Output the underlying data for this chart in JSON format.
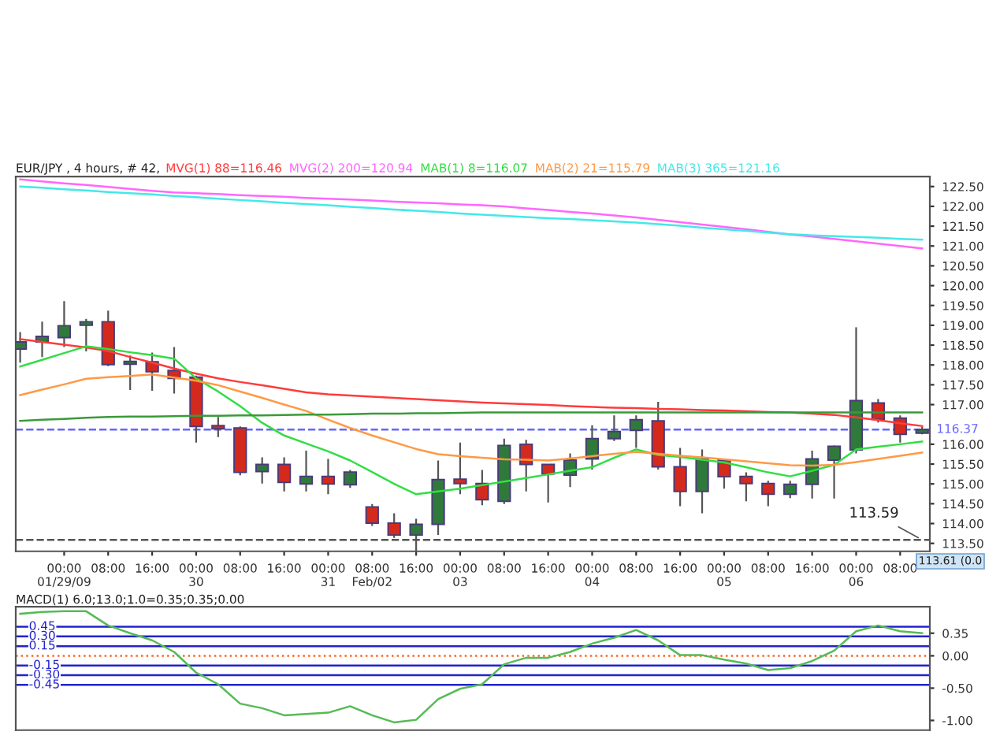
{
  "chart_data": [
    {
      "type": "candlestick",
      "title": "EUR/JPY , 4 hours, # 42,",
      "legend": "top",
      "categories": [
        null,
        null,
        "00:00\n01/29/09",
        null,
        "08:00",
        null,
        "16:00",
        null,
        "00:00\n30",
        null,
        "08:00",
        null,
        "16:00",
        null,
        "00:00\n31",
        null,
        "08:00\nFeb/02",
        null,
        "16:00",
        null,
        "00:00\n03",
        null,
        "08:00",
        null,
        "16:00",
        null,
        "00:00\n04",
        null,
        "08:00",
        null,
        "16:00",
        null,
        "00:00\n05",
        null,
        "08:00",
        null,
        "16:00",
        null,
        "00:00\n06",
        null,
        "08:00",
        null
      ],
      "ohlc": [
        [
          118.4,
          118.83,
          118.06,
          118.58
        ],
        [
          118.58,
          119.09,
          118.2,
          118.72
        ],
        [
          118.69,
          119.61,
          118.45,
          118.99
        ],
        [
          119.0,
          119.16,
          118.34,
          119.09
        ],
        [
          119.09,
          119.37,
          117.97,
          118.01
        ],
        [
          118.02,
          118.24,
          117.37,
          118.09
        ],
        [
          118.08,
          118.31,
          117.35,
          117.83
        ],
        [
          117.86,
          118.45,
          117.28,
          117.66
        ],
        [
          117.69,
          117.73,
          116.04,
          116.45
        ],
        [
          116.47,
          116.69,
          116.18,
          116.39
        ],
        [
          116.41,
          116.45,
          115.22,
          115.29
        ],
        [
          115.31,
          115.67,
          115.01,
          115.49
        ],
        [
          115.49,
          115.67,
          114.81,
          115.04
        ],
        [
          115.0,
          115.84,
          114.81,
          115.19
        ],
        [
          115.19,
          115.63,
          114.74,
          115.0
        ],
        [
          114.98,
          115.35,
          114.9,
          115.3
        ],
        [
          114.42,
          114.49,
          113.94,
          114.01
        ],
        [
          114.01,
          114.26,
          113.64,
          113.71
        ],
        [
          113.71,
          114.12,
          113.23,
          113.98
        ],
        [
          113.98,
          115.59,
          113.71,
          115.11
        ],
        [
          115.12,
          116.04,
          114.74,
          115.01
        ],
        [
          115.01,
          115.35,
          114.46,
          114.6
        ],
        [
          114.56,
          116.14,
          114.49,
          115.97
        ],
        [
          116.0,
          116.11,
          114.81,
          115.49
        ],
        [
          115.49,
          115.49,
          114.53,
          115.25
        ],
        [
          115.22,
          115.77,
          114.92,
          115.6
        ],
        [
          115.63,
          116.48,
          115.36,
          116.14
        ],
        [
          116.14,
          116.73,
          116.08,
          116.32
        ],
        [
          116.35,
          116.73,
          115.91,
          116.62
        ],
        [
          116.59,
          117.07,
          115.36,
          115.43
        ],
        [
          115.43,
          115.91,
          114.44,
          114.81
        ],
        [
          114.81,
          115.87,
          114.26,
          115.63
        ],
        [
          115.6,
          115.63,
          114.88,
          115.18
        ],
        [
          115.19,
          115.29,
          114.56,
          115.01
        ],
        [
          115.01,
          115.08,
          114.44,
          114.74
        ],
        [
          114.74,
          115.08,
          114.64,
          114.99
        ],
        [
          114.99,
          115.84,
          114.63,
          115.63
        ],
        [
          115.6,
          115.97,
          114.63,
          115.95
        ],
        [
          115.86,
          118.95,
          115.77,
          117.1
        ],
        [
          117.04,
          117.14,
          116.55,
          116.63
        ],
        [
          116.66,
          116.73,
          116.04,
          116.25
        ],
        [
          116.28,
          116.45,
          116.25,
          116.37
        ]
      ],
      "colors": [
        "#2f7a3a",
        "#2f7a3a",
        "#2f7a3a",
        "#2f7a3a",
        "#d42a1e",
        "#2f7a3a",
        "#d42a1e",
        "#d42a1e",
        "#d42a1e",
        "#d42a1e",
        "#d42a1e",
        "#2f7a3a",
        "#d42a1e",
        "#2f7a3a",
        "#d42a1e",
        "#2f7a3a",
        "#d42a1e",
        "#d42a1e",
        "#2f7a3a",
        "#2f7a3a",
        "#d42a1e",
        "#d42a1e",
        "#2f7a3a",
        "#d42a1e",
        "#d42a1e",
        "#2f7a3a",
        "#2f7a3a",
        "#2f7a3a",
        "#2f7a3a",
        "#d42a1e",
        "#d42a1e",
        "#2f7a3a",
        "#d42a1e",
        "#d42a1e",
        "#d42a1e",
        "#2f7a3a",
        "#2f7a3a",
        "#2f7a3a",
        "#2f7a3a",
        "#d42a1e",
        "#d42a1e",
        "#2f7a3a"
      ],
      "series": [
        {
          "type": "line",
          "name": "MVG(1) 88=116.46",
          "color": "#ff3b3b",
          "values": [
            118.65,
            118.58,
            118.51,
            118.44,
            118.35,
            118.2,
            118.06,
            117.91,
            117.78,
            117.66,
            117.57,
            117.49,
            117.4,
            117.31,
            117.26,
            117.23,
            117.2,
            117.17,
            117.14,
            117.11,
            117.08,
            117.05,
            117.03,
            117.01,
            116.99,
            116.96,
            116.94,
            116.92,
            116.91,
            116.89,
            116.88,
            116.86,
            116.85,
            116.83,
            116.81,
            116.8,
            116.77,
            116.74,
            116.68,
            116.61,
            116.53,
            116.46
          ]
        },
        {
          "type": "line",
          "name": "MVG(2) 200=120.94",
          "color": "#ff66ff",
          "values": [
            122.68,
            122.63,
            122.58,
            122.54,
            122.49,
            122.44,
            122.39,
            122.35,
            122.33,
            122.31,
            122.28,
            122.26,
            122.24,
            122.21,
            122.19,
            122.17,
            122.15,
            122.12,
            122.1,
            122.08,
            122.05,
            122.03,
            122.0,
            121.95,
            121.91,
            121.86,
            121.82,
            121.77,
            121.72,
            121.66,
            121.6,
            121.54,
            121.48,
            121.42,
            121.36,
            121.29,
            121.24,
            121.18,
            121.12,
            121.06,
            121.0,
            120.94
          ]
        },
        {
          "type": "line",
          "name": "MAB(1) 8=116.07",
          "color": "#33dd44",
          "values": [
            117.96,
            118.13,
            118.3,
            118.47,
            118.4,
            118.32,
            118.25,
            118.16,
            117.66,
            117.33,
            116.96,
            116.54,
            116.22,
            116.02,
            115.82,
            115.59,
            115.3,
            115.0,
            114.74,
            114.81,
            114.88,
            114.97,
            115.06,
            115.15,
            115.24,
            115.33,
            115.42,
            115.66,
            115.87,
            115.73,
            115.68,
            115.61,
            115.54,
            115.42,
            115.29,
            115.19,
            115.33,
            115.48,
            115.87,
            115.94,
            116.0,
            116.07
          ]
        },
        {
          "type": "line",
          "name": "MAB(2) 21=115.79",
          "color": "#ff9944",
          "values": [
            117.24,
            117.38,
            117.51,
            117.65,
            117.69,
            117.72,
            117.76,
            117.68,
            117.6,
            117.49,
            117.33,
            117.17,
            117.0,
            116.84,
            116.62,
            116.41,
            116.22,
            116.05,
            115.88,
            115.75,
            115.7,
            115.66,
            115.62,
            115.61,
            115.59,
            115.64,
            115.7,
            115.76,
            115.81,
            115.76,
            115.71,
            115.67,
            115.62,
            115.57,
            115.52,
            115.47,
            115.46,
            115.48,
            115.55,
            115.63,
            115.71,
            115.79
          ]
        },
        {
          "type": "line",
          "name": "MAB(3) 365=121.16",
          "color": "#44e8e8",
          "values": [
            122.5,
            122.47,
            122.43,
            122.4,
            122.36,
            122.33,
            122.3,
            122.26,
            122.23,
            122.19,
            122.16,
            122.13,
            122.09,
            122.06,
            122.03,
            121.99,
            121.96,
            121.92,
            121.89,
            121.86,
            121.82,
            121.79,
            121.76,
            121.73,
            121.7,
            121.68,
            121.65,
            121.62,
            121.59,
            121.55,
            121.51,
            121.46,
            121.42,
            121.38,
            121.34,
            121.3,
            121.27,
            121.25,
            121.23,
            121.21,
            121.18,
            121.16
          ]
        },
        {
          "type": "line",
          "color": "#3a9a3a",
          "values": [
            116.59,
            116.62,
            116.64,
            116.67,
            116.69,
            116.7,
            116.7,
            116.71,
            116.72,
            116.72,
            116.73,
            116.73,
            116.74,
            116.75,
            116.75,
            116.76,
            116.77,
            116.77,
            116.78,
            116.78,
            116.79,
            116.8,
            116.8,
            116.8,
            116.8,
            116.8,
            116.8,
            116.8,
            116.8,
            116.8,
            116.8,
            116.8,
            116.8,
            116.8,
            116.8,
            116.8,
            116.8,
            116.8,
            116.8,
            116.8,
            116.8,
            116.8
          ]
        }
      ],
      "ref_lines": [
        {
          "axis": "y",
          "value": 116.37,
          "label": "116.37",
          "color": "#6666ff",
          "line_style": "dashed"
        },
        {
          "axis": "y",
          "value": 113.59,
          "label": "113.59",
          "color": "#555555",
          "line_style": "dashed"
        }
      ],
      "annotations": [
        "113.61 (0.0"
      ],
      "ylim": [
        113.3,
        122.75
      ],
      "yticks": [
        {
          "value": 113.5,
          "label": "113.50"
        },
        {
          "value": 114,
          "label": "114.00"
        },
        {
          "value": 114.5,
          "label": "114.50"
        },
        {
          "value": 115,
          "label": "115.00"
        },
        {
          "value": 115.5,
          "label": "115.50"
        },
        {
          "value": 116,
          "label": "116.00"
        },
        {
          "value": 117,
          "label": "117.00"
        },
        {
          "value": 117.5,
          "label": "117.50"
        },
        {
          "value": 118,
          "label": "118.00"
        },
        {
          "value": 118.5,
          "label": "118.50"
        },
        {
          "value": 119,
          "label": "119.00"
        },
        {
          "value": 119.5,
          "label": "119.50"
        },
        {
          "value": 120,
          "label": "120.00"
        },
        {
          "value": 120.5,
          "label": "120.50"
        },
        {
          "value": 121,
          "label": "121.00"
        },
        {
          "value": 121.5,
          "label": "121.50"
        },
        {
          "value": 122,
          "label": "122.00"
        },
        {
          "value": 122.5,
          "label": "122.50"
        }
      ]
    },
    {
      "type": "line",
      "title": "MACD(1) 6.0;13.0;1.0=0.35;0.35;0.00",
      "tick_labels": "y",
      "categories": [
        null,
        null,
        null,
        null,
        null,
        null,
        null,
        null,
        null,
        null,
        null,
        null,
        null,
        null,
        null,
        null,
        null,
        null,
        null,
        null,
        null,
        null,
        null,
        null,
        null,
        null,
        null,
        null,
        null,
        null,
        null,
        null,
        null,
        null,
        null,
        null,
        null,
        null,
        null,
        null,
        null,
        null
      ],
      "series": [
        {
          "color": "#55bb55",
          "values": [
            0.65,
            0.68,
            0.69,
            0.69,
            0.47,
            0.35,
            0.24,
            0.06,
            -0.26,
            -0.44,
            -0.74,
            -0.81,
            -0.92,
            -0.9,
            -0.88,
            -0.78,
            -0.92,
            -1.03,
            -0.99,
            -0.67,
            -0.51,
            -0.44,
            -0.13,
            -0.03,
            -0.03,
            0.06,
            0.19,
            0.28,
            0.4,
            0.24,
            0.01,
            0.01,
            -0.06,
            -0.12,
            -0.22,
            -0.19,
            -0.08,
            0.08,
            0.38,
            0.47,
            0.38,
            0.35
          ]
        }
      ],
      "ref_lines": [
        {
          "axis": "y",
          "value": 0.45,
          "label": "0.45",
          "color": "#2222cc",
          "line_style": "solid"
        },
        {
          "axis": "y",
          "value": 0.3,
          "label": "0.30",
          "color": "#2222cc",
          "line_style": "solid"
        },
        {
          "axis": "y",
          "value": 0.15,
          "label": "0.15",
          "color": "#2222cc",
          "line_style": "solid"
        },
        {
          "axis": "y",
          "value": 0,
          "color": "#ff6622",
          "line_style": "dotted"
        },
        {
          "axis": "y",
          "value": -0.15,
          "label": "-0.15",
          "color": "#2222cc",
          "line_style": "solid"
        },
        {
          "axis": "y",
          "value": -0.3,
          "label": "-0.30",
          "color": "#2222cc",
          "line_style": "solid"
        },
        {
          "axis": "y",
          "value": -0.45,
          "label": "-0.45",
          "color": "#2222cc",
          "line_style": "solid"
        }
      ],
      "ylim": [
        -1.15,
        0.76
      ],
      "yticks": [
        {
          "value": 0.35,
          "label": "0.35"
        },
        {
          "value": 0,
          "label": "0.00"
        },
        {
          "value": -0.5,
          "label": "-0.50"
        },
        {
          "value": -1,
          "label": "-1.00"
        }
      ]
    }
  ]
}
